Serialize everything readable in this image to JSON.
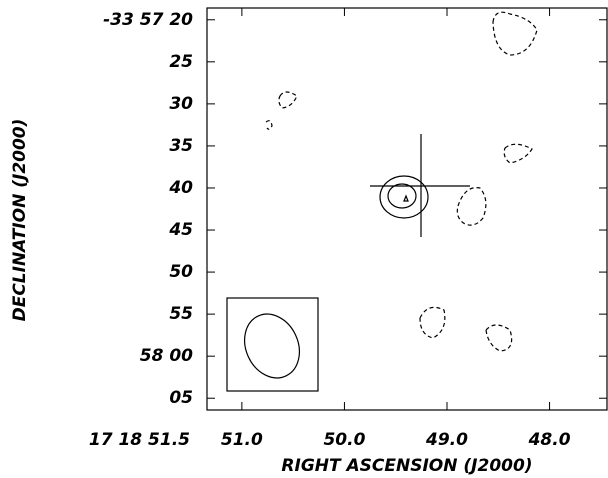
{
  "chart_data": {
    "type": "contour",
    "xlabel": "RIGHT ASCENSION (J2000)",
    "ylabel": "DECLINATION (J2000)",
    "xlim": [
      51.34,
      47.44
    ],
    "ylim": [
      18.6,
      66.4
    ],
    "xticks": [
      {
        "value": 51.5,
        "label": "17 18 51.5"
      },
      {
        "value": 51,
        "label": "51.0"
      },
      {
        "value": 50,
        "label": "50.0"
      },
      {
        "value": 49,
        "label": "49.0"
      },
      {
        "value": 48,
        "label": "48.0"
      }
    ],
    "yticks": [
      {
        "value": 20,
        "label": "-33 57 20"
      },
      25,
      30,
      35,
      40,
      45,
      50,
      55,
      {
        "value": 60,
        "label": "58 00"
      },
      {
        "value": 65,
        "label": "05"
      }
    ]
  }
}
